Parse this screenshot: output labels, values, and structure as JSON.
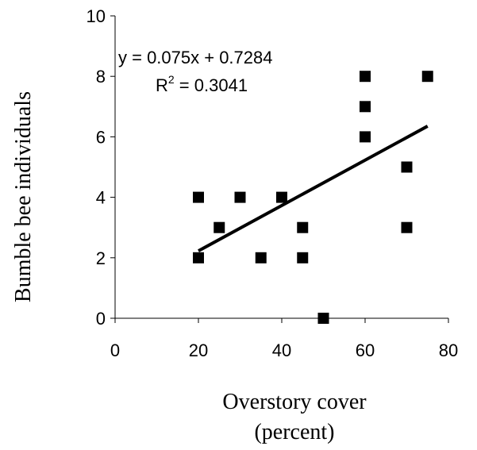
{
  "chart_data": {
    "type": "scatter",
    "title": "",
    "xlabel_line1": "Overstory cover",
    "xlabel_line2": "(percent)",
    "ylabel": "Bumble bee individuals",
    "xlim": [
      0,
      80
    ],
    "ylim": [
      0,
      10
    ],
    "xticks": [
      0,
      20,
      40,
      60,
      80
    ],
    "yticks": [
      0,
      2,
      4,
      6,
      8,
      10
    ],
    "grid": false,
    "series": [
      {
        "points": [
          {
            "x": 20,
            "y": 4
          },
          {
            "x": 20,
            "y": 2
          },
          {
            "x": 25,
            "y": 3
          },
          {
            "x": 30,
            "y": 4
          },
          {
            "x": 35,
            "y": 2
          },
          {
            "x": 40,
            "y": 4
          },
          {
            "x": 45,
            "y": 3
          },
          {
            "x": 45,
            "y": 2
          },
          {
            "x": 50,
            "y": 0
          },
          {
            "x": 60,
            "y": 8
          },
          {
            "x": 60,
            "y": 7
          },
          {
            "x": 60,
            "y": 6
          },
          {
            "x": 70,
            "y": 5
          },
          {
            "x": 70,
            "y": 3
          },
          {
            "x": 75,
            "y": 8
          }
        ],
        "marker": "square",
        "color": "#000000"
      }
    ],
    "trendline": {
      "slope": 0.075,
      "intercept": 0.7284,
      "x_range": [
        20,
        75
      ],
      "equation_text": "y = 0.075x + 0.7284",
      "r2_prefix": "R",
      "r2_superscript": "2",
      "r2_value_text": " = 0.3041"
    }
  }
}
